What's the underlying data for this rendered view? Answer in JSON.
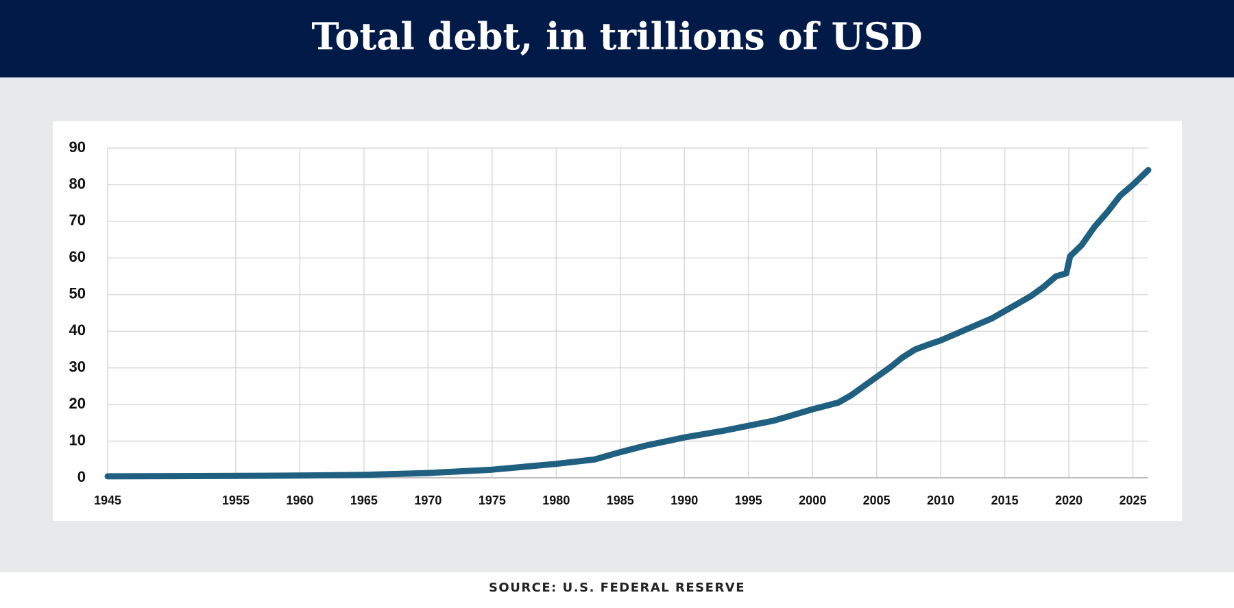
{
  "chart_data": {
    "type": "line",
    "title": "Total debt, in trillions of USD",
    "source": "SOURCE: U.S. FEDERAL RESERVE",
    "x": [
      1945,
      1950,
      1955,
      1960,
      1965,
      1970,
      1975,
      1980,
      1983,
      1985,
      1987,
      1990,
      1993,
      1995,
      1997,
      2000,
      2002,
      2003,
      2004,
      2005,
      2006,
      2007,
      2008,
      2009,
      2010,
      2011,
      2012,
      2013,
      2014,
      2015,
      2016,
      2017,
      2018,
      2019,
      2019.8,
      2020.1,
      2021,
      2022,
      2023,
      2024,
      2025,
      2026.2
    ],
    "series": [
      {
        "name": "Total debt",
        "color": "#1f5f80",
        "values": [
          0.4,
          0.45,
          0.5,
          0.6,
          0.8,
          1.3,
          2.2,
          3.8,
          5,
          7,
          8.8,
          11,
          12.8,
          14.2,
          15.6,
          18.7,
          20.5,
          22.5,
          25,
          27.5,
          30,
          32.8,
          35,
          36.3,
          37.5,
          39,
          40.5,
          42,
          43.5,
          45.5,
          47.5,
          49.5,
          52,
          55,
          55.8,
          60.5,
          63.5,
          68.5,
          72.5,
          77,
          80,
          84
        ]
      }
    ],
    "xlim": [
      1945,
      2026.2
    ],
    "xticks": [
      1945,
      1955,
      1960,
      1965,
      1970,
      1975,
      1980,
      1985,
      1990,
      1995,
      2000,
      2005,
      2010,
      2015,
      2020,
      2025
    ],
    "ylim": [
      0,
      90
    ],
    "yticks": [
      0,
      10,
      20,
      30,
      40,
      50,
      60,
      70,
      80,
      90
    ],
    "grid": true
  }
}
